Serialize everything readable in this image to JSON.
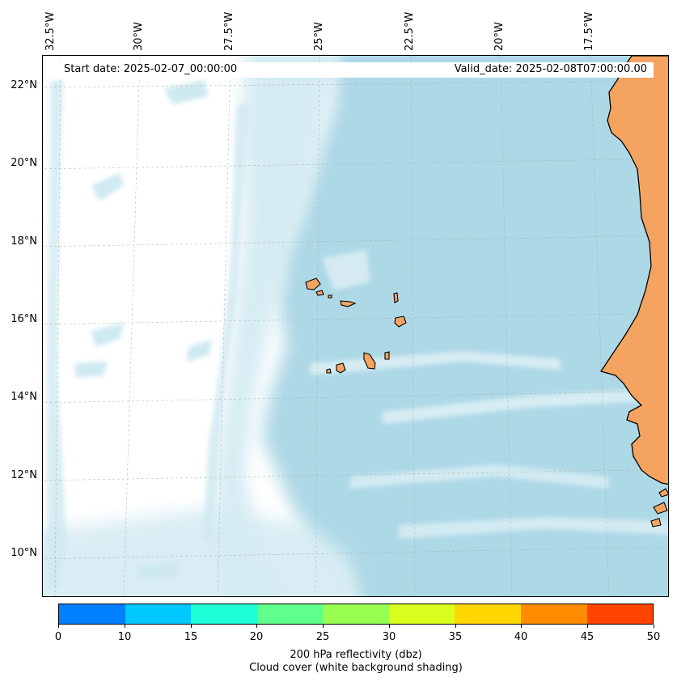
{
  "map": {
    "start_date": "Start date: 2025-02-07_00:00:00",
    "valid_date": "Valid_date: 2025-02-08T07:00:00.00",
    "longitude_labels": [
      "32.5°W",
      "30°W",
      "27.5°W",
      "25°W",
      "22.5°W",
      "20°W",
      "17.5°W"
    ],
    "latitude_labels": [
      "22°N",
      "20°N",
      "18°N",
      "16°N",
      "14°N",
      "12°N",
      "10°N"
    ],
    "land_color": "#f4a460",
    "ocean_cloud_color": "#add8e6",
    "background_color": "#ffffff"
  },
  "colorbar": {
    "ticks": [
      "0",
      "10",
      "15",
      "20",
      "25",
      "30",
      "35",
      "40",
      "45",
      "50"
    ],
    "colors": [
      "#0080ff",
      "#00c8ff",
      "#1effd8",
      "#60ff8c",
      "#98ff52",
      "#d8ff1e",
      "#ffd700",
      "#ff8c00",
      "#ff4500"
    ],
    "label_line1": "200 hPa reflectivity (dbz)",
    "label_line2": "Cloud cover (white background shading)"
  }
}
